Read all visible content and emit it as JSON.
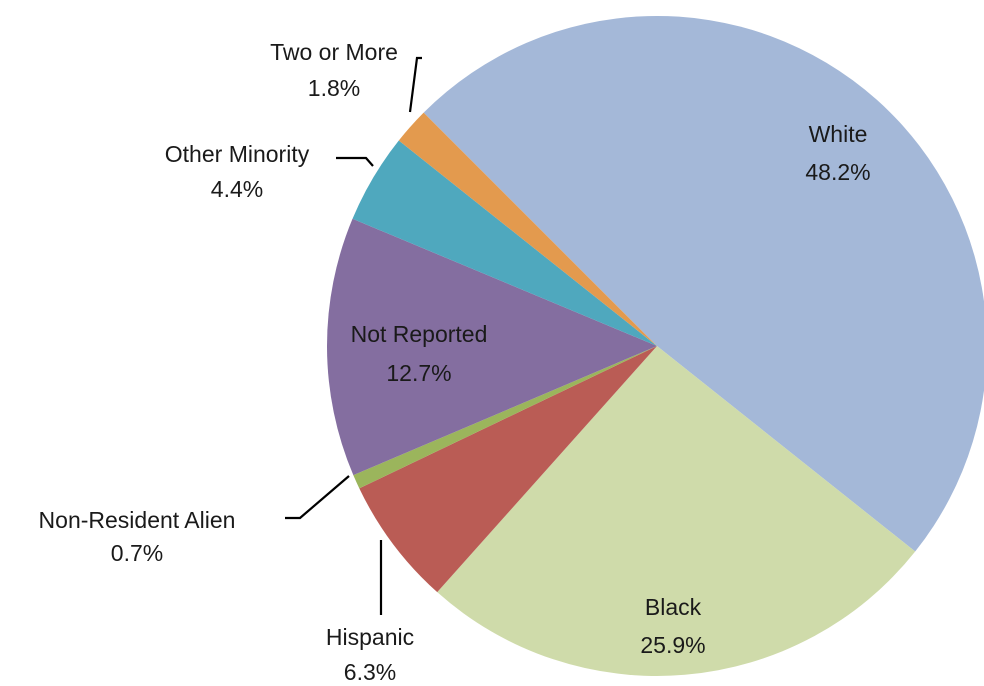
{
  "chart_data": {
    "type": "pie",
    "title": "",
    "slices": [
      {
        "label": "White",
        "percent_label": "48.2%",
        "value": 48.2,
        "color": "#A4B8D8"
      },
      {
        "label": "Black",
        "percent_label": "25.9%",
        "value": 25.9,
        "color": "#CFDBAA"
      },
      {
        "label": "Hispanic",
        "percent_label": "6.3%",
        "value": 6.3,
        "color": "#BA5C55"
      },
      {
        "label": "Non-Resident Alien",
        "percent_label": "0.7%",
        "value": 0.7,
        "color": "#9BB55C"
      },
      {
        "label": "Not Reported",
        "percent_label": "12.7%",
        "value": 12.7,
        "color": "#846EA0"
      },
      {
        "label": "Other Minority",
        "percent_label": "4.4%",
        "value": 4.4,
        "color": "#4FA8BE"
      },
      {
        "label": "Two or More",
        "percent_label": "1.8%",
        "value": 1.8,
        "color": "#E39A4E"
      }
    ],
    "start_angle_deg": 135,
    "direction": "clockwise"
  }
}
